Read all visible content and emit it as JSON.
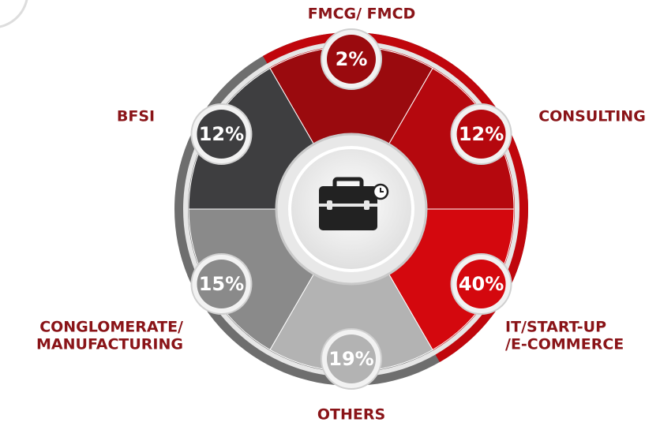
{
  "segments": [
    {
      "label": [
        "FMCG/ FMCD"
      ],
      "value": "2%",
      "color": "#9a0a0e"
    },
    {
      "label": [
        "CONSULTING"
      ],
      "value": "12%",
      "color": "#b5080e"
    },
    {
      "label": [
        "IT/START-UP",
        "/E-COMMERCE"
      ],
      "value": "40%",
      "color": "#d4080e"
    },
    {
      "label": [
        "OTHERS"
      ],
      "value": "19%",
      "color": "#b3b3b3"
    },
    {
      "label": [
        "CONGLOMERATE/",
        "MANUFACTURING"
      ],
      "value": "15%",
      "color": "#8a8a8a"
    },
    {
      "label": [
        "BFSI"
      ],
      "value": "12%",
      "color": "#3e3e40"
    }
  ]
}
